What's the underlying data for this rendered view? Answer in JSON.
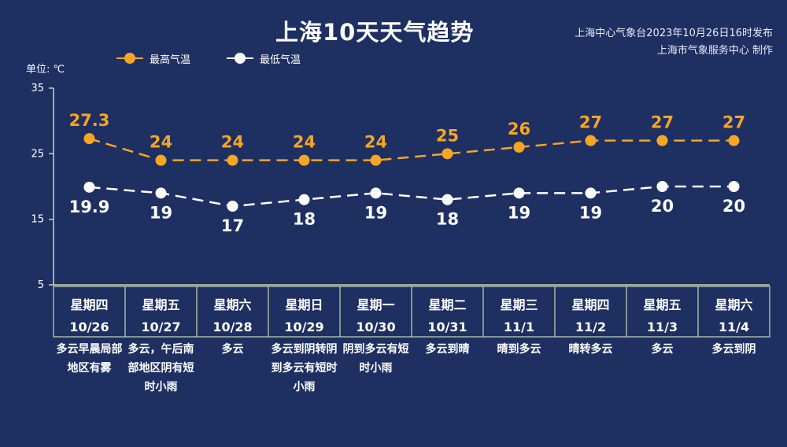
{
  "title": "上海10天天气趋势",
  "publisher": {
    "line1": "上海中心气象台2023年10月26日16时发布",
    "line2": "上海市气象服务中心 制作"
  },
  "unit_label": "单位: ℃",
  "colors": {
    "background": "#1e2f62",
    "high": "#f5a623",
    "low": "#ffffff",
    "axis": "#c9d8b0",
    "text": "#ffffff"
  },
  "chart_data": {
    "type": "line",
    "categories": [
      "10/26",
      "10/27",
      "10/28",
      "10/29",
      "10/30",
      "10/31",
      "11/1",
      "11/2",
      "11/3",
      "11/4"
    ],
    "weekdays": [
      "星期四",
      "星期五",
      "星期六",
      "星期日",
      "星期一",
      "星期二",
      "星期三",
      "星期四",
      "星期五",
      "星期六"
    ],
    "weather": [
      "多云早晨局部地区有雾",
      "多云，午后南部地区阴有短时小雨",
      "多云",
      "多云到阴转阴到多云有短时小雨",
      "阴到多云有短时小雨",
      "多云到晴",
      "晴到多云",
      "晴转多云",
      "多云",
      "多云到阴"
    ],
    "series": [
      {
        "name": "最高气温",
        "values": [
          27.3,
          24,
          24,
          24,
          24,
          25,
          26,
          27,
          27,
          27
        ],
        "labels": [
          "27.3",
          "24",
          "24",
          "24",
          "24",
          "25",
          "26",
          "27",
          "27",
          "27"
        ]
      },
      {
        "name": "最低气温",
        "values": [
          19.9,
          19,
          17,
          18,
          19,
          18,
          19,
          19,
          20,
          20
        ],
        "labels": [
          "19.9",
          "19",
          "17",
          "18",
          "19",
          "18",
          "19",
          "19",
          "20",
          "20"
        ]
      }
    ],
    "ylim": [
      5,
      35
    ],
    "yticks": [
      "35",
      "25",
      "15",
      "5"
    ],
    "ylabel": "单位: ℃",
    "xlabel": "",
    "legend_position": "top-left",
    "grid": false,
    "line_style": "dashed"
  }
}
